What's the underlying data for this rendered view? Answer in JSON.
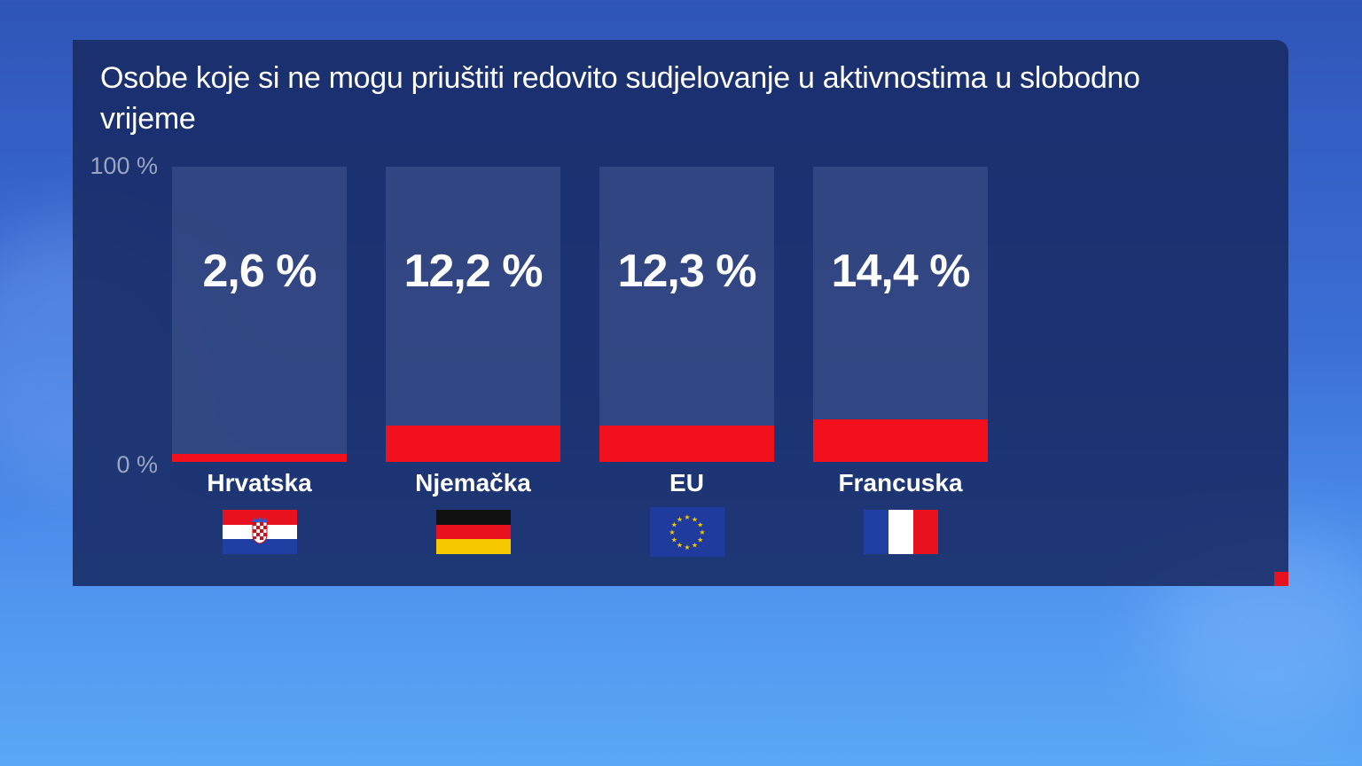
{
  "title": "Osobe koje si ne mogu priuštiti redovito sudjelovanje u aktivnostima u slobodno vrijeme",
  "chart_data": {
    "type": "bar",
    "title": "Osobe koje si ne mogu priuštiti redovito sudjelovanje u aktivnostima u slobodno vrijeme",
    "categories": [
      "Hrvatska",
      "Njemačka",
      "EU",
      "Francuska"
    ],
    "values": [
      2.6,
      12.2,
      12.3,
      14.4
    ],
    "value_labels": [
      "2,6 %",
      "12,2 %",
      "12,3 %",
      "14,4 %"
    ],
    "ylim": [
      0,
      100
    ],
    "ytick_labels": [
      "100 %",
      "0 %"
    ],
    "xlabel": "",
    "ylabel": "",
    "bar_color": "#f1101c"
  },
  "flags": [
    "croatia-flag",
    "germany-flag",
    "eu-flag",
    "france-flag"
  ],
  "colors": {
    "panel": "#182a64",
    "accent": "#e8121e"
  }
}
